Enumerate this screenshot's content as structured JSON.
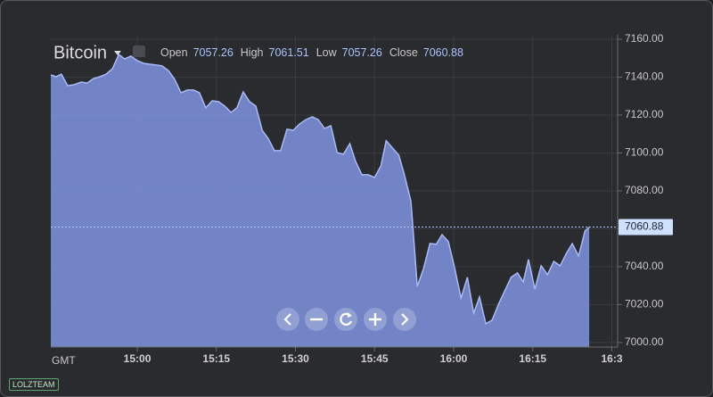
{
  "chart_data": {
    "type": "area",
    "title": "Bitcoin",
    "legend_items": [
      {
        "label": "Open",
        "value": 7057.26
      },
      {
        "label": "High",
        "value": 7061.51
      },
      {
        "label": "Low",
        "value": 7057.26
      },
      {
        "label": "Close",
        "value": 7060.88
      }
    ],
    "x_axis_label": "GMT",
    "x": [
      883.6,
      884.6,
      885.6,
      886.8,
      888.0,
      889.4,
      890.5,
      891.7,
      892.9,
      894.1,
      895.3,
      896.5,
      897.6,
      898.8,
      900.0,
      901.2,
      902.4,
      903.6,
      904.7,
      905.9,
      907.1,
      908.3,
      909.5,
      910.7,
      911.8,
      913.0,
      914.2,
      915.4,
      916.6,
      917.8,
      918.9,
      920.1,
      921.3,
      922.5,
      923.7,
      924.9,
      926.0,
      927.2,
      928.4,
      929.6,
      930.8,
      932.0,
      933.2,
      934.3,
      935.5,
      936.7,
      937.9,
      939.1,
      940.3,
      941.4,
      942.6,
      943.8,
      945.0,
      946.2,
      947.2,
      948.4,
      949.6,
      950.7,
      951.9,
      953.1,
      954.3,
      955.5,
      956.7,
      957.8,
      959.0,
      960.2,
      961.4,
      962.6,
      963.8,
      964.9,
      966.1,
      967.3,
      968.5,
      969.7,
      970.9,
      972.1,
      973.2,
      974.2,
      975.4,
      976.6,
      977.8,
      979.0,
      980.2,
      981.4,
      982.5,
      983.7,
      984.9,
      985.7
    ],
    "series": [
      {
        "name": "Bitcoin",
        "color": "#7f94e0",
        "values": [
          7141.2,
          7140.2,
          7141.6,
          7135.5,
          7136.0,
          7137.4,
          7136.9,
          7139.3,
          7140.2,
          7141.6,
          7144.5,
          7152.0,
          7149.6,
          7151.1,
          7148.7,
          7147.3,
          7146.8,
          7146.4,
          7145.9,
          7143.5,
          7138.8,
          7131.8,
          7133.2,
          7133.2,
          7131.8,
          7123.8,
          7127.5,
          7127.1,
          7124.7,
          7121.4,
          7123.8,
          7132.2,
          7127.1,
          7124.7,
          7112.0,
          7107.3,
          7101.2,
          7101.2,
          7112.5,
          7112.0,
          7115.3,
          7117.6,
          7119.1,
          7117.6,
          7112.9,
          7114.4,
          7100.2,
          7099.3,
          7104.9,
          7095.5,
          7088.5,
          7088.5,
          7087.1,
          7093.2,
          7106.4,
          7102.6,
          7098.8,
          7088.0,
          7074.4,
          7029.6,
          7039.1,
          7052.2,
          7051.8,
          7056.9,
          7053.2,
          7039.1,
          7023.5,
          7034.4,
          7015.5,
          7024.0,
          7009.9,
          7011.8,
          7020.2,
          7027.3,
          7034.4,
          7036.7,
          7032.0,
          7043.8,
          7028.2,
          7040.5,
          7035.8,
          7042.8,
          7040.5,
          7047.1,
          7052.2,
          7045.6,
          7058.8,
          7060.88
        ]
      }
    ],
    "last_price": 7060.88,
    "xlim": [
      883.6,
      991.1
    ],
    "xticks": [
      {
        "value": 900,
        "label": "15:00"
      },
      {
        "value": 915,
        "label": "15:15"
      },
      {
        "value": 930,
        "label": "15:30"
      },
      {
        "value": 945,
        "label": "15:45"
      },
      {
        "value": 960,
        "label": "16:00"
      },
      {
        "value": 975,
        "label": "16:15"
      },
      {
        "value": 990,
        "label": "16:3"
      }
    ],
    "ylim": [
      6997.6,
      7161.4
    ],
    "yticks": [
      {
        "value": 7000,
        "label": "7000.00"
      },
      {
        "value": 7020,
        "label": "7020.00"
      },
      {
        "value": 7040,
        "label": "7040.00"
      },
      {
        "value": 7060,
        "label": "7060.00"
      },
      {
        "value": 7080,
        "label": "7080.00"
      },
      {
        "value": 7100,
        "label": "7100.00"
      },
      {
        "value": 7120,
        "label": "7120.00"
      },
      {
        "value": 7140,
        "label": "7140.00"
      },
      {
        "value": 7160,
        "label": "7160.00"
      }
    ],
    "grid": true
  },
  "watermark": "LOLZTEAM"
}
